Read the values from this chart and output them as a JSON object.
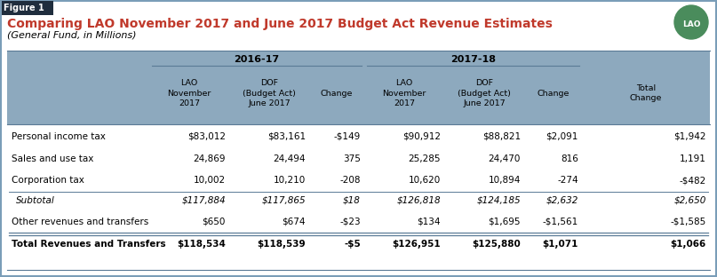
{
  "figure_label": "Figure 1",
  "title": "Comparing LAO November 2017 and June 2017 Budget Act Revenue Estimates",
  "subtitle": "(General Fund, in Millions)",
  "header_bg": "#8da9be",
  "header_group_2016": "2016-17",
  "header_group_2018": "2017-18",
  "col_headers": [
    "LAO\nNovember\n2017",
    "DOF\n(Budget Act)\nJune 2017",
    "Change",
    "LAO\nNovember\n2017",
    "DOF\n(Budget Act)\nJune 2017",
    "Change",
    "Total\nChange"
  ],
  "rows": [
    {
      "label": "Personal income tax",
      "italic": false,
      "bold": false,
      "data": [
        "$83,012",
        "$83,161",
        "-$149",
        "$90,912",
        "$88,821",
        "$2,091",
        "$1,942"
      ],
      "separator_after": false,
      "double_separator_after": false
    },
    {
      "label": "Sales and use tax",
      "italic": false,
      "bold": false,
      "data": [
        "24,869",
        "24,494",
        "375",
        "25,285",
        "24,470",
        "816",
        "1,191"
      ],
      "separator_after": false,
      "double_separator_after": false
    },
    {
      "label": "Corporation tax",
      "italic": false,
      "bold": false,
      "data": [
        "10,002",
        "10,210",
        "-208",
        "10,620",
        "10,894",
        "-274",
        "-$482"
      ],
      "separator_after": true,
      "double_separator_after": false
    },
    {
      "label": "Subtotal",
      "italic": true,
      "bold": false,
      "data": [
        "$117,884",
        "$117,865",
        "$18",
        "$126,818",
        "$124,185",
        "$2,632",
        "$2,650"
      ],
      "separator_after": false,
      "double_separator_after": false
    },
    {
      "label": "Other revenues and transfers",
      "italic": false,
      "bold": false,
      "data": [
        "$650",
        "$674",
        "-$23",
        "$134",
        "$1,695",
        "-$1,561",
        "-$1,585"
      ],
      "separator_after": false,
      "double_separator_after": true
    },
    {
      "label": "Total Revenues and Transfers",
      "italic": false,
      "bold": true,
      "data": [
        "$118,534",
        "$118,539",
        "-$5",
        "$126,951",
        "$125,880",
        "$1,071",
        "$1,066"
      ],
      "separator_after": false,
      "double_separator_after": false
    }
  ],
  "title_color": "#c0392b",
  "figure_label_bg": "#1f2d3d",
  "figure_label_color": "#ffffff",
  "border_color": "#7a9db8",
  "separator_color": "#5a7a96",
  "text_color": "#000000",
  "bg_color": "#ffffff",
  "lao_logo_color": "#4a8c5c",
  "col_boundaries": [
    8,
    168,
    258,
    348,
    410,
    500,
    590,
    655,
    799
  ]
}
